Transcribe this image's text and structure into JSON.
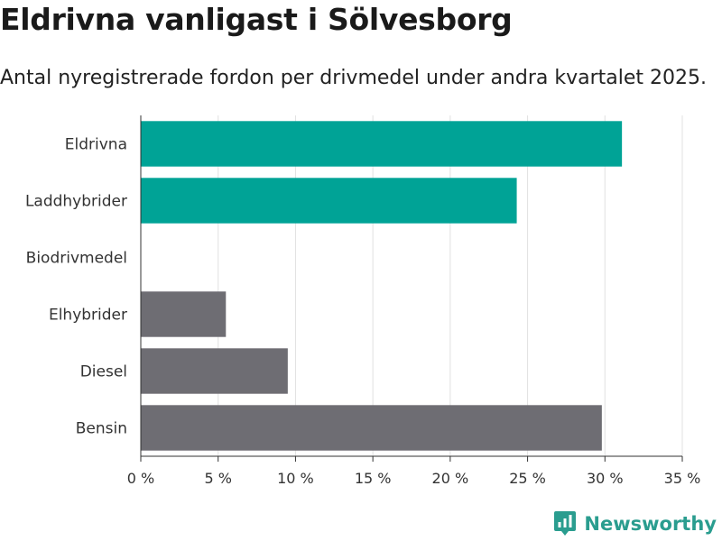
{
  "title": "Eldrivna vanligast i Sölvesborg",
  "subtitle": "Antal nyregistrerade fordon per drivmedel under andra kvartalet 2025.",
  "brand": {
    "name": "Newsworthy",
    "color": "#2a9d8f"
  },
  "chart_data": {
    "type": "bar",
    "orientation": "horizontal",
    "categories": [
      "Eldrivna",
      "Laddhybrider",
      "Biodrivmedel",
      "Elhybrider",
      "Diesel",
      "Bensin"
    ],
    "values": [
      31.1,
      24.3,
      0,
      5.5,
      9.5,
      29.8
    ],
    "colors": [
      "#00a396",
      "#00a396",
      "#6e6d73",
      "#6e6d73",
      "#6e6d73",
      "#6e6d73"
    ],
    "xlim": [
      0,
      35
    ],
    "xticks": [
      0,
      5,
      10,
      15,
      20,
      25,
      30,
      35
    ],
    "xtick_labels": [
      "0 %",
      "5 %",
      "10 %",
      "15 %",
      "20 %",
      "25 %",
      "30 %",
      "35 %"
    ],
    "grid": true,
    "xlabel": "",
    "ylabel": ""
  }
}
